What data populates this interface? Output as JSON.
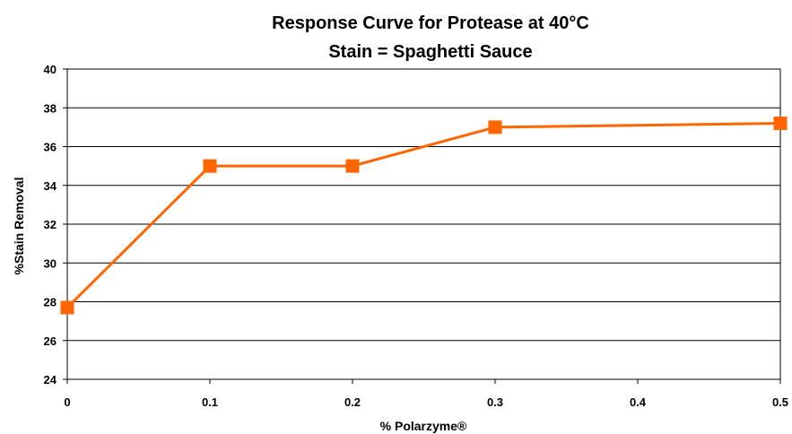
{
  "chart_data": {
    "type": "line",
    "title": "Response Curve for Protease at 40°C",
    "subtitle": "Stain = Spaghetti Sauce",
    "xlabel": "% Polarzyme®",
    "ylabel": "%Stain Removal",
    "x_ticks": [
      "0",
      "0.1",
      "0.2",
      "0.3",
      "0.4",
      "0.5"
    ],
    "y_ticks": [
      "24",
      "26",
      "28",
      "30",
      "32",
      "34",
      "36",
      "38",
      "40"
    ],
    "xlim": [
      0,
      0.5
    ],
    "ylim": [
      24,
      40
    ],
    "grid": true,
    "legend": "none",
    "series": [
      {
        "x": [
          0,
          0.1,
          0.2,
          0.3,
          0.5
        ],
        "values": [
          27.7,
          35.0,
          35.0,
          37.0,
          37.2
        ],
        "color": "#FF6600",
        "marker": "square"
      }
    ]
  }
}
